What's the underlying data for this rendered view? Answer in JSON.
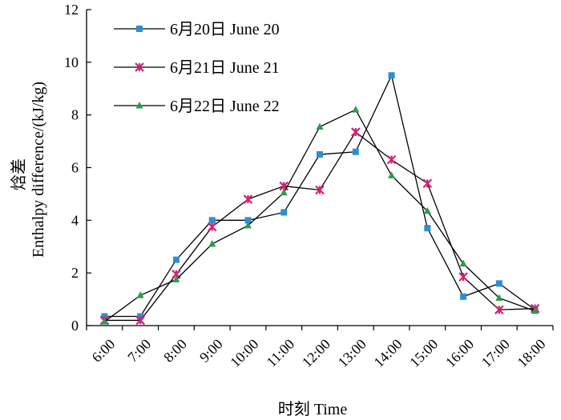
{
  "chart_data": {
    "type": "line",
    "xlabel": "时刻  Time",
    "ylabel_cn": "焓差",
    "ylabel_en": "Enthalpy difference/(kJ/kg)",
    "ylim": [
      0,
      12
    ],
    "y_ticks": [
      0,
      2,
      4,
      6,
      8,
      10,
      12
    ],
    "grid": false,
    "legend_position": "top-left",
    "categories": [
      "6:00",
      "7:00",
      "8:00",
      "9:00",
      "10:00",
      "11:00",
      "12:00",
      "13:00",
      "14:00",
      "15:00",
      "16:00",
      "17:00",
      "18:00"
    ],
    "series": [
      {
        "name": "6月20日  June 20",
        "marker": "square",
        "color": "#2e8fd0",
        "values": [
          0.35,
          0.35,
          2.5,
          4.0,
          4.0,
          4.3,
          6.5,
          6.6,
          9.5,
          3.7,
          1.1,
          1.6,
          0.6
        ]
      },
      {
        "name": "6月21日  June 21",
        "marker": "asterisk",
        "color": "#d61f73",
        "values": [
          0.2,
          0.2,
          1.95,
          3.75,
          4.8,
          5.3,
          5.15,
          7.35,
          6.3,
          5.4,
          1.85,
          0.6,
          0.65
        ]
      },
      {
        "name": "6月22日  June 22",
        "marker": "triangle",
        "color": "#2c9c4a",
        "values": [
          0.15,
          1.15,
          1.75,
          3.1,
          3.8,
          5.05,
          7.55,
          8.2,
          5.7,
          4.35,
          2.35,
          1.05,
          0.55
        ]
      }
    ]
  }
}
